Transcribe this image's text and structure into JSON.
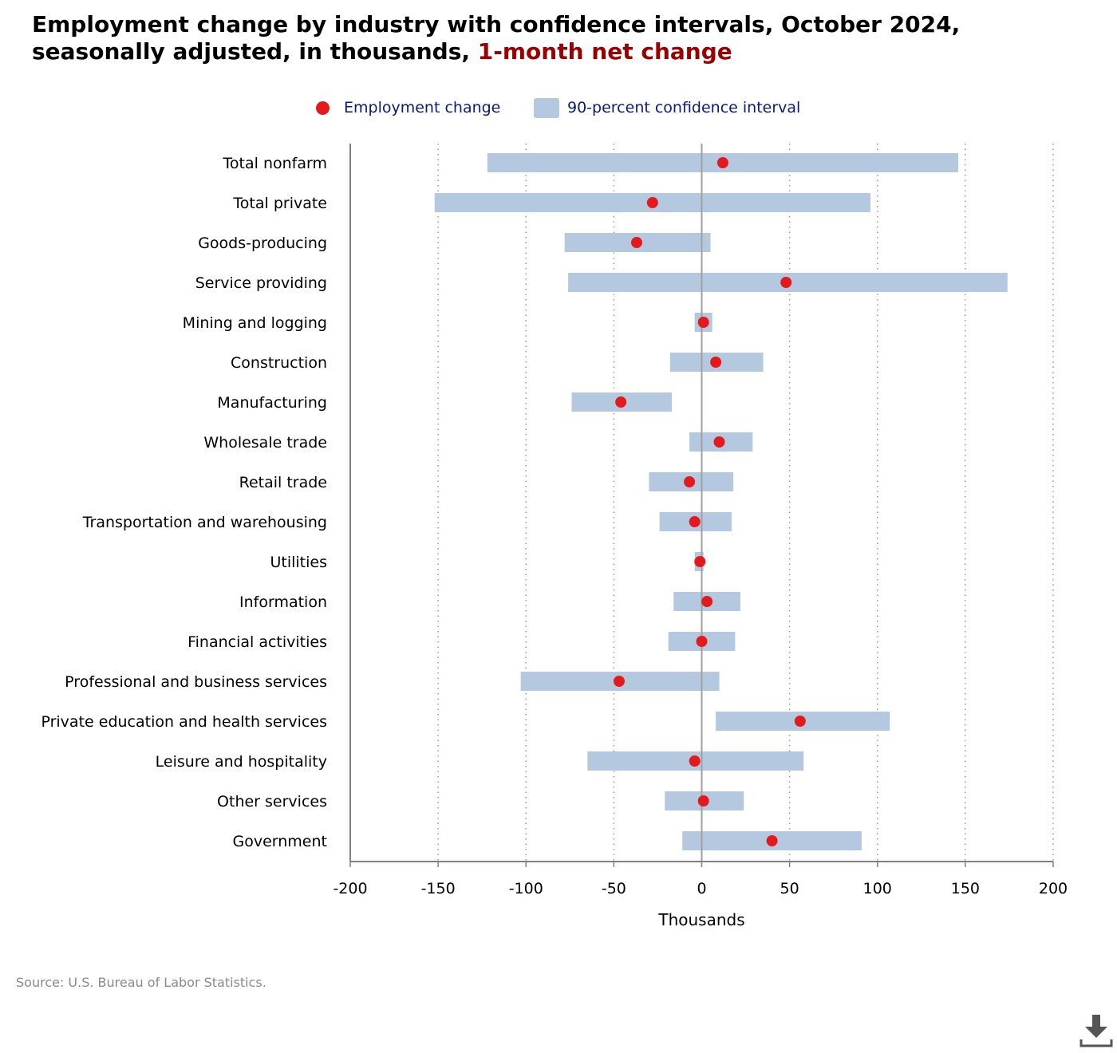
{
  "title": {
    "main": "Employment change by industry with confidence intervals, October 2024, seasonally adjusted, in thousands,",
    "highlight": "1-month net change"
  },
  "legend": {
    "point_label": "Employment change",
    "interval_label": "90-percent confidence interval"
  },
  "source": "Source: U.S. Bureau of Labor Statistics.",
  "colors": {
    "point": "#e31a1c",
    "interval": "#b4c8e0",
    "title_highlight": "#990000",
    "legend_text": "#0a1a7a",
    "zero_line": "#a0a0a0",
    "axis": "#808080"
  },
  "icons": {
    "download": "download-icon"
  },
  "chart_data": {
    "type": "dot-and-interval",
    "orientation": "horizontal",
    "xlabel": "Thousands",
    "xlim": [
      -200,
      200
    ],
    "xticks": [
      -200,
      -150,
      -100,
      -50,
      0,
      50,
      100,
      150,
      200
    ],
    "grid": "vertical dotted",
    "legend_placement": "top-center",
    "categories": [
      "Total nonfarm",
      "Total private",
      "Goods-producing",
      "Service providing",
      "Mining and logging",
      "Construction",
      "Manufacturing",
      "Wholesale trade",
      "Retail trade",
      "Transportation and warehousing",
      "Utilities",
      "Information",
      "Financial activities",
      "Professional and business services",
      "Private education and health services",
      "Leisure and hospitality",
      "Other services",
      "Government"
    ],
    "series": [
      {
        "name": "Employment change",
        "values": [
          12,
          -28,
          -37,
          48,
          1,
          8,
          -46,
          10,
          -7,
          -4,
          -1,
          3,
          0,
          -47,
          56,
          -4,
          1,
          40
        ]
      },
      {
        "name": "90-percent confidence interval",
        "lower": [
          -122,
          -152,
          -78,
          -76,
          -4,
          -18,
          -74,
          -7,
          -30,
          -24,
          -4,
          -16,
          -19,
          -103,
          8,
          -65,
          -21,
          -11
        ],
        "upper": [
          146,
          96,
          5,
          174,
          6,
          35,
          -17,
          29,
          18,
          17,
          1,
          22,
          19,
          10,
          107,
          58,
          24,
          91
        ]
      }
    ]
  }
}
